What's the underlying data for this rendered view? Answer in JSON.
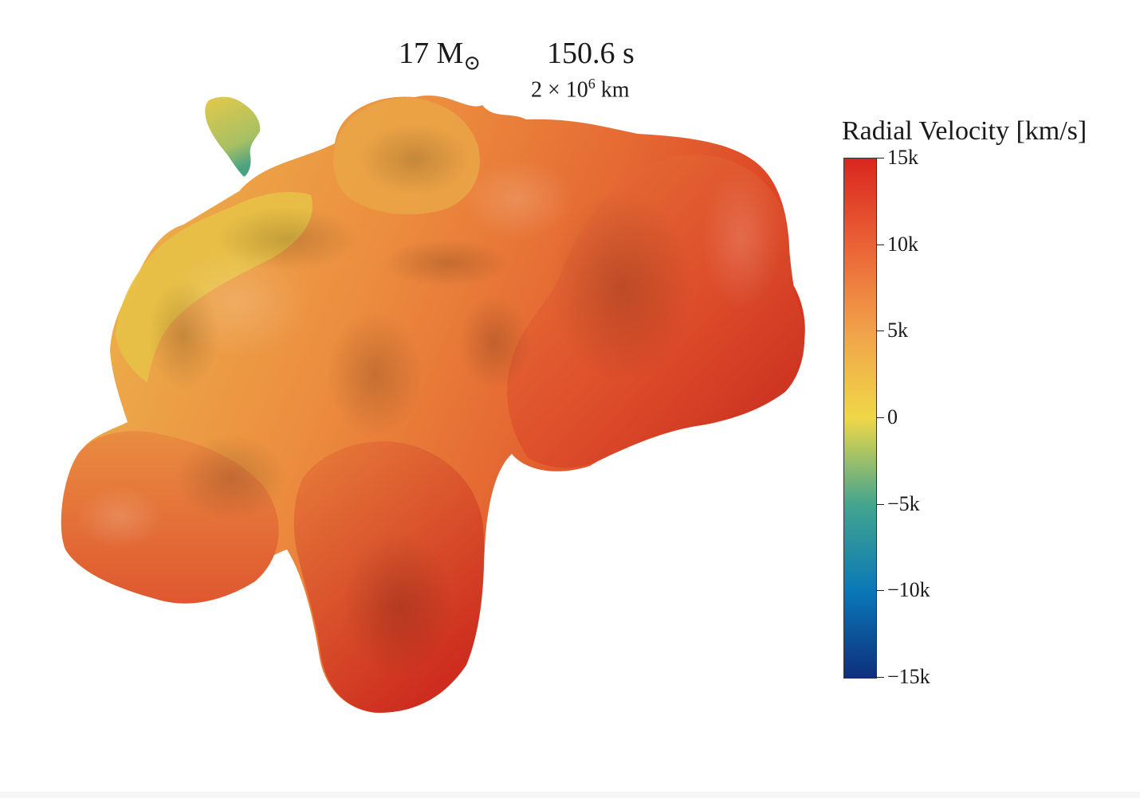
{
  "header": {
    "mass_number": "17",
    "mass_unit": "M",
    "mass_unit_sub": "⊙",
    "time": "150.6 s",
    "scale_coef": "2",
    "scale_times": "×",
    "scale_base": "10",
    "scale_exp": "6",
    "scale_unit": "km"
  },
  "colorbar": {
    "title": "Radial Velocity [km/s]",
    "min": -15000,
    "max": 15000,
    "ticks": [
      {
        "value": 15000,
        "label": "15k"
      },
      {
        "value": 10000,
        "label": "10k"
      },
      {
        "value": 5000,
        "label": "5k"
      },
      {
        "value": 0,
        "label": "0"
      },
      {
        "value": -5000,
        "label": "−5k"
      },
      {
        "value": -10000,
        "label": "−10k"
      },
      {
        "value": -15000,
        "label": "−15k"
      }
    ],
    "stops": [
      {
        "value": 15000,
        "color": "#d9261f"
      },
      {
        "value": 10000,
        "color": "#ea6236"
      },
      {
        "value": 5000,
        "color": "#f1a24a"
      },
      {
        "value": 0,
        "color": "#efd847"
      },
      {
        "value": -5000,
        "color": "#43a58e"
      },
      {
        "value": -10000,
        "color": "#0a78b7"
      },
      {
        "value": -15000,
        "color": "#0e2f7c"
      }
    ]
  },
  "colors": {
    "ejecta_red": "#d93a24",
    "ejecta_orange": "#ec8a3e",
    "ejecta_yellow": "#e6c645",
    "ejecta_green": "#5ea874"
  }
}
